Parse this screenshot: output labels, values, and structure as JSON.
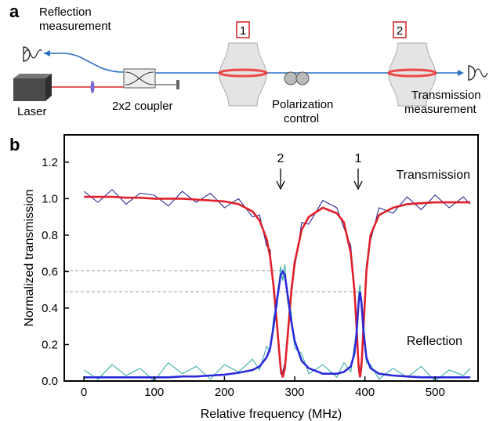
{
  "diagram": {
    "panel": "a",
    "reflection": [
      "Reflection",
      "measurement"
    ],
    "laser": "Laser",
    "coupler": "2x2 coupler",
    "resonator_1": "1",
    "resonator_2": "2",
    "polarization": [
      "Polarization",
      "control"
    ],
    "transmission": [
      "Transmission",
      "measurement"
    ]
  },
  "chart_data": {
    "type": "line",
    "panel": "b",
    "x_label": "Relative frequency (MHz)",
    "y_label": "Normalized transmission",
    "annotations": [
      "Transmission",
      "Reflection",
      "2",
      "1"
    ],
    "x": [
      0,
      20,
      40,
      60,
      80,
      100,
      120,
      140,
      160,
      180,
      200,
      220,
      240,
      250,
      260,
      265,
      270,
      275,
      280,
      283,
      286,
      290,
      295,
      300,
      310,
      320,
      340,
      360,
      370,
      380,
      385,
      388,
      391,
      393,
      395,
      398,
      402,
      408,
      420,
      440,
      460,
      480,
      500,
      520,
      540,
      550
    ],
    "series": [
      {
        "color": "#2aa8a0",
        "values": [
          0.06,
          0.01,
          0.09,
          0.03,
          0.07,
          0.0,
          0.1,
          0.04,
          0.08,
          0.01,
          0.09,
          0.05,
          0.12,
          0.06,
          0.19,
          0.16,
          0.35,
          0.41,
          0.63,
          0.55,
          0.64,
          0.43,
          0.38,
          0.18,
          0.15,
          0.04,
          0.09,
          0.02,
          0.1,
          0.05,
          0.2,
          0.22,
          0.48,
          0.53,
          0.38,
          0.31,
          0.1,
          0.09,
          0.01,
          0.07,
          0.02,
          0.08,
          0.0,
          0.06,
          0.03,
          0.07
        ]
      },
      {
        "color": "#1a1a8c",
        "values": [
          1.04,
          0.98,
          1.05,
          0.97,
          1.03,
          1.02,
          0.96,
          1.04,
          0.98,
          1.03,
          0.95,
          1.0,
          0.9,
          0.91,
          0.74,
          0.72,
          0.48,
          0.34,
          0.04,
          0.05,
          0.1,
          0.22,
          0.52,
          0.62,
          0.87,
          0.86,
          0.99,
          0.95,
          0.84,
          0.74,
          0.46,
          0.34,
          0.05,
          0.06,
          0.12,
          0.26,
          0.64,
          0.77,
          0.95,
          0.92,
          1.01,
          0.94,
          1.02,
          0.95,
          1.01,
          0.97
        ]
      },
      {
        "color": "#e0202a",
        "values": [
          1.01,
          1.01,
          1.01,
          1.005,
          1.005,
          1.0,
          1.0,
          1.0,
          0.995,
          0.99,
          0.985,
          0.97,
          0.93,
          0.88,
          0.78,
          0.68,
          0.52,
          0.3,
          0.07,
          0.02,
          0.07,
          0.25,
          0.48,
          0.65,
          0.83,
          0.9,
          0.95,
          0.92,
          0.87,
          0.7,
          0.5,
          0.3,
          0.08,
          0.02,
          0.08,
          0.3,
          0.6,
          0.8,
          0.91,
          0.95,
          0.97,
          0.975,
          0.98,
          0.98,
          0.98,
          0.98
        ]
      },
      {
        "color": "#2a2ad8",
        "values": [
          0.02,
          0.02,
          0.02,
          0.02,
          0.02,
          0.02,
          0.02,
          0.025,
          0.025,
          0.03,
          0.035,
          0.045,
          0.06,
          0.08,
          0.13,
          0.18,
          0.3,
          0.45,
          0.58,
          0.6,
          0.58,
          0.47,
          0.33,
          0.22,
          0.11,
          0.07,
          0.04,
          0.04,
          0.05,
          0.08,
          0.15,
          0.26,
          0.43,
          0.49,
          0.43,
          0.27,
          0.13,
          0.07,
          0.04,
          0.03,
          0.025,
          0.02,
          0.02,
          0.02,
          0.02,
          0.02
        ]
      }
    ],
    "hlines": [
      0.605,
      0.49
    ],
    "xlim": [
      -28,
      561
    ],
    "ylim": [
      0,
      1.35
    ],
    "xticks": [
      0,
      100,
      200,
      300,
      400,
      500
    ],
    "yticks": [
      {
        "value": 0,
        "label": "0.0"
      },
      0.2,
      0.4,
      0.6,
      0.8,
      {
        "value": 1,
        "label": "1.0"
      },
      1.2
    ]
  }
}
